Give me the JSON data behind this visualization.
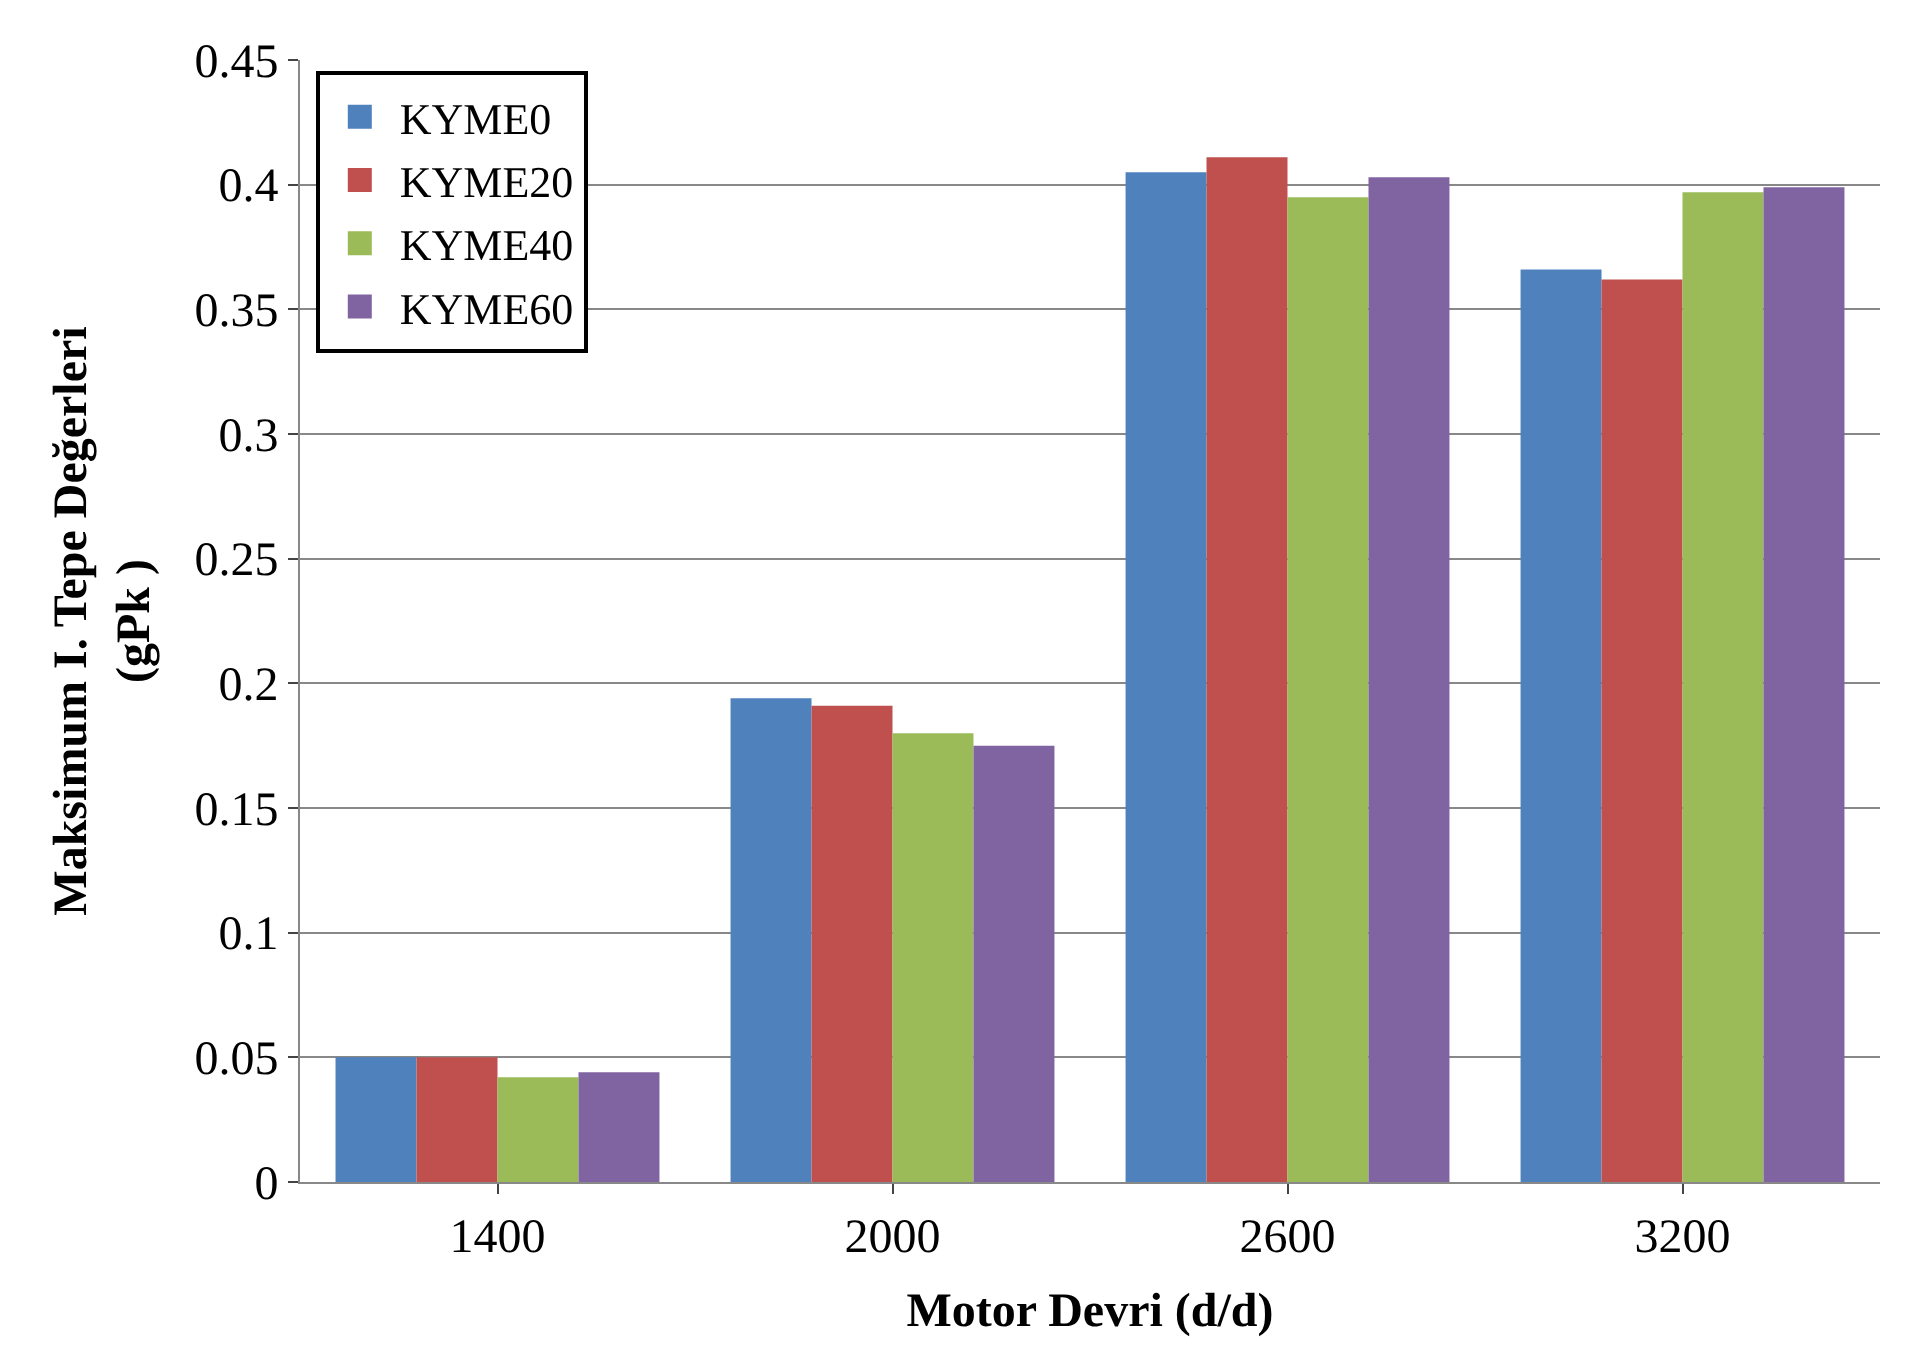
{
  "chart_data": {
    "type": "bar",
    "xlabel": "Motor Devri (d/d)",
    "ylabel": "Maksimum I. Tepe Değerleri\n(gPk )",
    "categories": [
      "1400",
      "2000",
      "2600",
      "3200"
    ],
    "series": [
      {
        "name": "KYME0",
        "color": "#4f81bd",
        "values": [
          0.05,
          0.194,
          0.405,
          0.366
        ]
      },
      {
        "name": "KYME20",
        "color": "#c0504d",
        "values": [
          0.05,
          0.191,
          0.411,
          0.362
        ]
      },
      {
        "name": "KYME40",
        "color": "#9bbb59",
        "values": [
          0.042,
          0.18,
          0.395,
          0.397
        ]
      },
      {
        "name": "KYME60",
        "color": "#8064a2",
        "values": [
          0.044,
          0.175,
          0.403,
          0.399
        ]
      }
    ],
    "ylim": [
      0,
      0.45
    ],
    "yticks": [
      0,
      0.05,
      0.1,
      0.15,
      0.2,
      0.25,
      0.3,
      0.35,
      0.4,
      0.45
    ],
    "grid": "y",
    "legend": "top left"
  }
}
